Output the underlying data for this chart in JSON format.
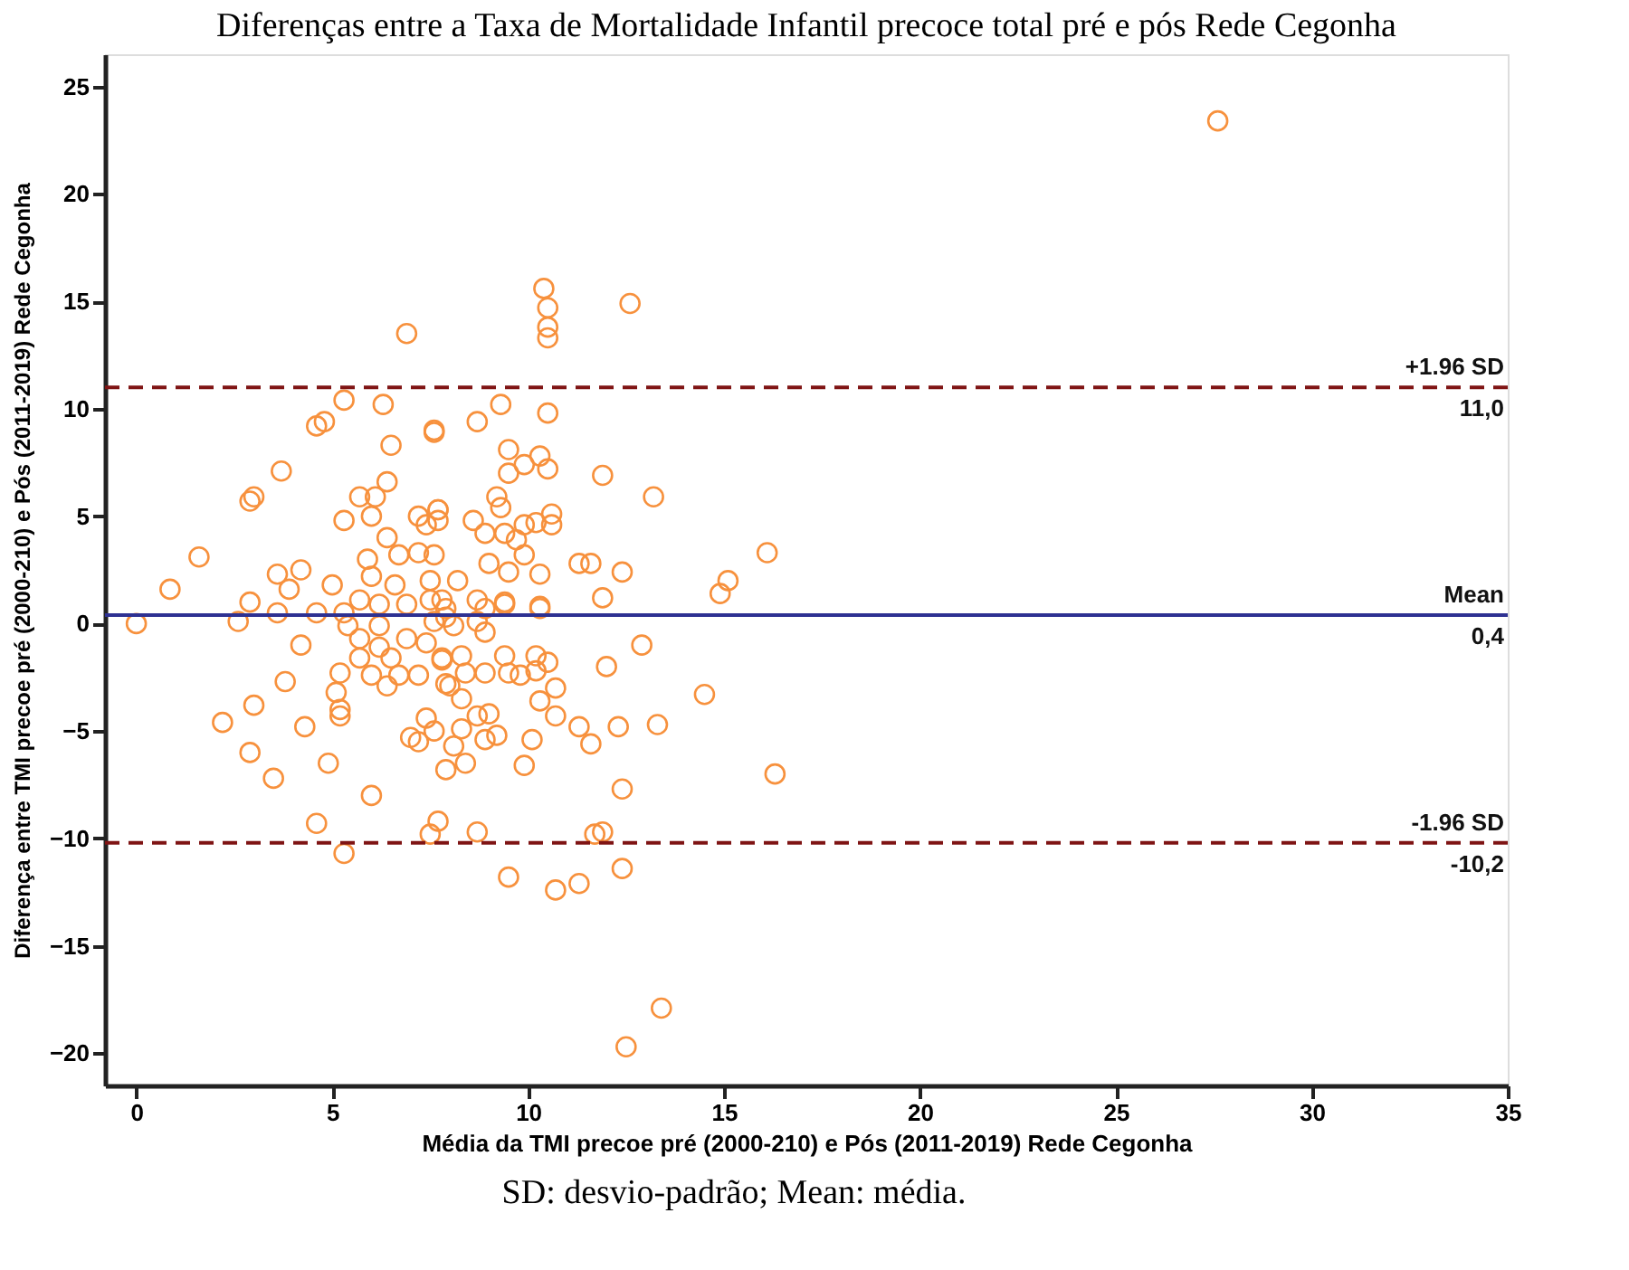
{
  "chart_data": {
    "type": "scatter",
    "title": "Diferenças entre a Taxa de Mortalidade Infantil precoce total pré e pós Rede Cegonha",
    "xlabel": "Média da TMI precoe pré (2000-210) e Pós (2011-2019) Rede Cegonha",
    "ylabel": "Diferença entre TMI precoe pré (2000-210) e Pós (2011-2019) Rede Cegonha",
    "xlim": [
      -0.8,
      35
    ],
    "xticks": [
      0,
      5,
      10,
      15,
      20,
      25,
      30,
      35
    ],
    "ylim": [
      -21.5,
      26.5
    ],
    "yticks": [
      -20,
      -15,
      -10,
      -5,
      0,
      5,
      10,
      15,
      20,
      25
    ],
    "grid": false,
    "marker": "circle",
    "series": [
      {
        "color": "#f7913d",
        "x": [
          0,
          0.86,
          1.6,
          2.6,
          3.6,
          4.2,
          2.9,
          3.9,
          5.0,
          3.6,
          3.7,
          2.9,
          3.0,
          5.7,
          6.1,
          6.4,
          5.3,
          6.0,
          6.4,
          7.2,
          7.7,
          7.4,
          7.7,
          5.3,
          6.3,
          4.6,
          4.8,
          7.6,
          6.5,
          6.9,
          5.9,
          6.7,
          7.2,
          7.6,
          6.0,
          6.6,
          7.5,
          5.7,
          6.2,
          6.9,
          7.5,
          5.3,
          4.6,
          7.9,
          10.4,
          10.5,
          10.5,
          10.5,
          12.6,
          9.3,
          10.5,
          8.7,
          7.6,
          9.5,
          10.3,
          9.9,
          9.5,
          10.5,
          11.9,
          13.2,
          9.2,
          9.3,
          10.6,
          10.6,
          9.9,
          10.2,
          9.7,
          9.4,
          8.9,
          8.6,
          7.7,
          9.9,
          9.0,
          8.2,
          9.5,
          10.3,
          11.3,
          11.6,
          12.4,
          11.9,
          16.1,
          15.1,
          14.9,
          10.3,
          9.4,
          8.7,
          7.8,
          4.2,
          3.8,
          3.0,
          2.2,
          4.3,
          2.9,
          3.5,
          4.9,
          6.0,
          4.6,
          5.3,
          7.7,
          7.5,
          5.2,
          5.1,
          5.2,
          5.2,
          6.0,
          6.4,
          6.7,
          7.2,
          7.4,
          7.6,
          7.0,
          7.2,
          7.9,
          5.4,
          6.2,
          5.7,
          6.2,
          6.9,
          5.7,
          6.5,
          7.4,
          7.8,
          8.0,
          12.9,
          12.0,
          14.5,
          16.3,
          11.3,
          11.6,
          12.3,
          13.3,
          12.4,
          9.9,
          10.1,
          10.7,
          10.3,
          10.7,
          10.5,
          10.2,
          9.8,
          8.7,
          11.7,
          11.9,
          9.5,
          10.7,
          11.3,
          12.4,
          13.4,
          12.5,
          8.4,
          8.1,
          8.9,
          9.2,
          8.3,
          8.7,
          9.0,
          8.3,
          7.9,
          8.4,
          8.9,
          7.8,
          8.3,
          8.9,
          9.4,
          9.5,
          10.2,
          7.9,
          8.9,
          9.4,
          10.3,
          7.6,
          8.1,
          8.7,
          27.6
        ],
        "values": [
          0,
          1.6,
          3.1,
          0.1,
          2.3,
          2.5,
          1.0,
          1.6,
          1.8,
          0.5,
          7.1,
          5.7,
          5.9,
          5.9,
          5.9,
          6.6,
          4.8,
          5.0,
          4.0,
          5.0,
          5.3,
          4.6,
          4.8,
          10.4,
          10.2,
          9.2,
          9.4,
          8.9,
          8.3,
          13.5,
          3.0,
          3.2,
          3.3,
          3.2,
          2.2,
          1.8,
          2.0,
          1.1,
          0.9,
          0.9,
          1.1,
          0.5,
          0.5,
          0.3,
          15.6,
          14.7,
          13.8,
          13.3,
          14.9,
          10.2,
          9.8,
          9.4,
          9.0,
          8.1,
          7.8,
          7.4,
          7.0,
          7.2,
          6.9,
          5.9,
          5.9,
          5.4,
          5.1,
          4.6,
          4.6,
          4.7,
          3.9,
          4.2,
          4.2,
          4.8,
          5.3,
          3.2,
          2.8,
          2.0,
          2.4,
          2.3,
          2.8,
          2.8,
          2.4,
          1.2,
          3.3,
          2.0,
          1.4,
          0.8,
          1.0,
          1.1,
          1.1,
          -1.0,
          -2.7,
          -3.8,
          -4.6,
          -4.8,
          -6.0,
          -7.2,
          -6.5,
          -8.0,
          -9.3,
          -10.7,
          -9.2,
          -9.8,
          -2.3,
          -3.2,
          -4.0,
          -4.3,
          -2.4,
          -2.9,
          -2.4,
          -2.4,
          -4.4,
          -5.0,
          -5.3,
          -5.5,
          -6.8,
          -0.1,
          -0.1,
          -0.7,
          -1.1,
          -0.7,
          -1.6,
          -1.6,
          -0.9,
          -1.6,
          -2.9,
          -1.0,
          -2.0,
          -3.3,
          -7.0,
          -4.8,
          -5.6,
          -4.8,
          -4.7,
          -7.7,
          -6.6,
          -5.4,
          -4.3,
          -3.6,
          -3.0,
          -1.8,
          -1.5,
          -2.4,
          -9.7,
          -9.8,
          -9.7,
          -11.8,
          -12.4,
          -12.1,
          -11.4,
          -17.9,
          -19.7,
          -6.5,
          -5.7,
          -5.4,
          -5.2,
          -4.9,
          -4.3,
          -4.2,
          -3.5,
          -2.8,
          -2.3,
          -2.3,
          -1.7,
          -1.5,
          -0.4,
          -1.5,
          -2.3,
          -2.2,
          0.7,
          0.7,
          0.9,
          0.7,
          0.1,
          -0.1,
          0.1,
          23.4
        ]
      }
    ],
    "ref_lines": [
      {
        "axis": "y",
        "value": 11.0,
        "label": "+1.96 SD",
        "color": "#7f1414",
        "line_style": "dashed"
      },
      {
        "axis": "y",
        "value": 0.4,
        "label": "Mean",
        "color": "#2e3192",
        "line_style": "solid"
      },
      {
        "axis": "y",
        "value": -10.2,
        "label": "-1.96 SD",
        "color": "#7f1414",
        "line_style": "dashed"
      }
    ],
    "annotations": [
      {
        "text": "11,0",
        "y": 11.0
      },
      {
        "text": "0,4",
        "y": 0.4
      },
      {
        "text": "-10,2",
        "y": -10.2
      },
      "SD: desvio-padrão; Mean: média."
    ]
  }
}
